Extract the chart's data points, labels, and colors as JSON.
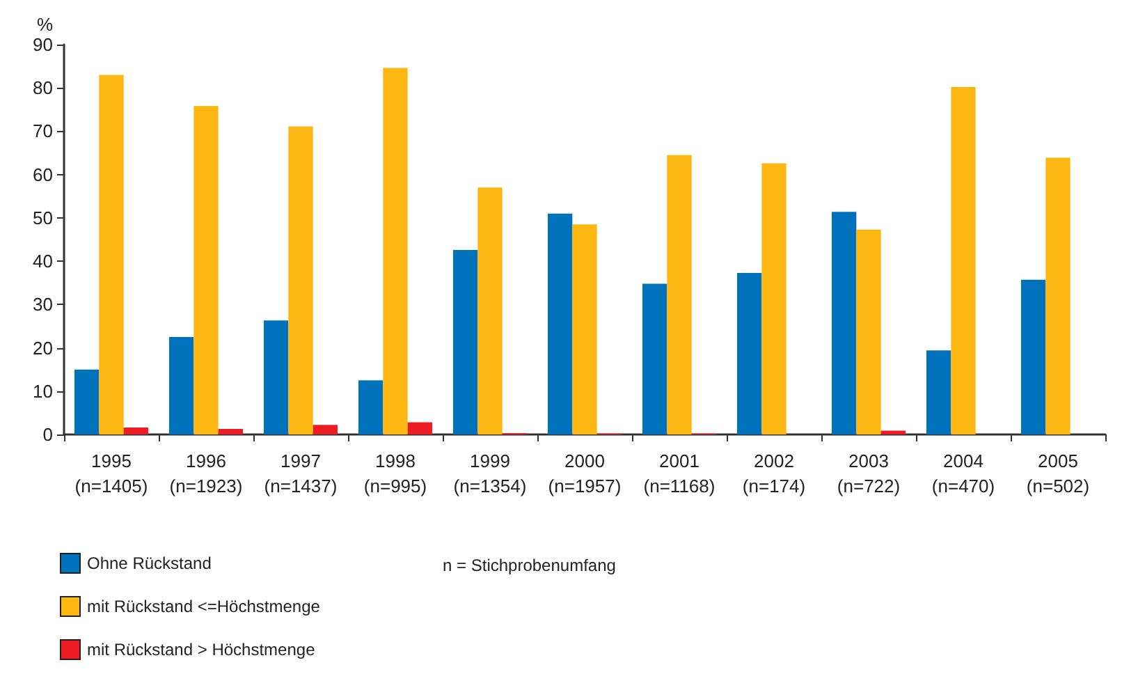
{
  "chart_data": {
    "type": "bar",
    "ylabel": "%",
    "categories": [
      "1995\n(n=1405)",
      "1996\n(n=1923)",
      "1997\n(n=1437)",
      "1998\n(n=995)",
      "1999\n(n=1354)",
      "2000\n(n=1957)",
      "2001\n(n=1168)",
      "2002\n(n=174)",
      "2003\n(n=722)",
      "2004\n(n=470)",
      "2005\n(n=502)"
    ],
    "series": [
      {
        "name": "Ohne Rückstand",
        "color": "#0072bc",
        "values": [
          15.0,
          22.5,
          26.3,
          12.5,
          42.6,
          51.0,
          34.8,
          37.3,
          51.4,
          19.4,
          35.7
        ]
      },
      {
        "name": "mit Rückstand <=Höchstmenge",
        "color": "#fdb713",
        "values": [
          83.0,
          75.8,
          71.1,
          84.6,
          57.0,
          48.5,
          64.5,
          62.6,
          47.3,
          80.2,
          63.9
        ]
      },
      {
        "name": "mit Rückstand > Höchstmenge",
        "color": "#ed1c24",
        "values": [
          1.6,
          1.3,
          2.2,
          2.8,
          0.3,
          0.2,
          0.2,
          0,
          0.9,
          0,
          0
        ]
      }
    ],
    "ylim": [
      0,
      90
    ],
    "yticks": [
      0,
      10,
      20,
      30,
      40,
      50,
      60,
      70,
      80,
      90
    ],
    "grid": false,
    "legend": "bottom left",
    "annotations": [
      "n = Stichprobenumfang"
    ]
  }
}
